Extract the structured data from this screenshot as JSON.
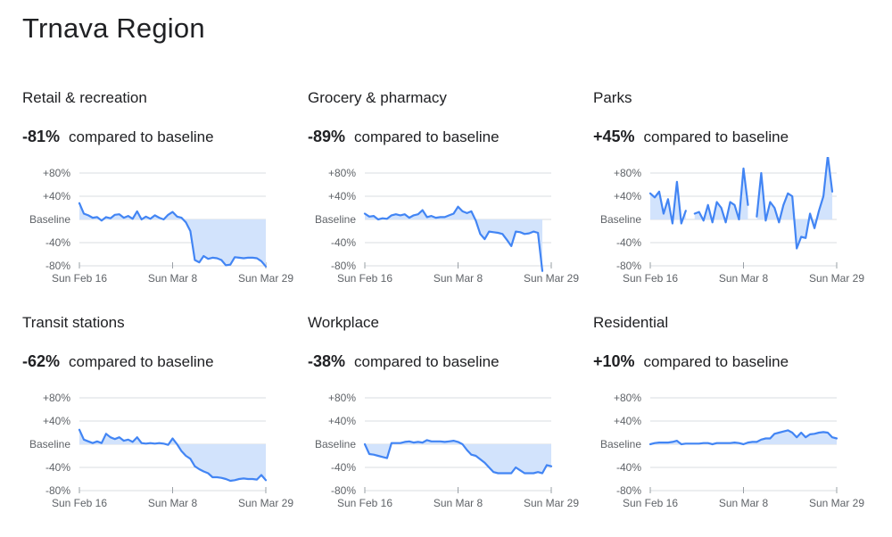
{
  "region_title": "Trnava Region",
  "comparison_label": "compared to baseline",
  "colors": {
    "line": "#4285f4",
    "fill": "#d2e3fc",
    "grid": "#dadce0",
    "text": "#5f6368"
  },
  "axis": {
    "y_ticks": [
      {
        "value": 80,
        "label": "+80%"
      },
      {
        "value": 40,
        "label": "+40%"
      },
      {
        "value": 0,
        "label": "Baseline"
      },
      {
        "value": -40,
        "label": "-40%"
      },
      {
        "value": -80,
        "label": "-80%"
      }
    ],
    "x_ticks": [
      {
        "index": 0,
        "label": "Sun Feb 16"
      },
      {
        "index": 21,
        "label": "Sun Mar 8"
      },
      {
        "index": 42,
        "label": "Sun Mar 29"
      }
    ]
  },
  "chart_data": [
    {
      "type": "line",
      "title": "Retail & recreation",
      "change": "-81%",
      "ylim": [
        -80,
        80
      ],
      "series": [
        {
          "values": [
            28,
            10,
            7,
            3,
            4,
            -2,
            4,
            2,
            8,
            9,
            3,
            6,
            1,
            14,
            0,
            5,
            1,
            7,
            3,
            0,
            8,
            13,
            5,
            3,
            -5,
            -20,
            -70,
            -74,
            -63,
            -68,
            -66,
            -67,
            -70,
            -79,
            -78,
            -65,
            -66,
            -67,
            -66,
            -66,
            -67,
            -72,
            -81
          ]
        }
      ]
    },
    {
      "type": "line",
      "title": "Grocery & pharmacy",
      "change": "-89%",
      "ylim": [
        -80,
        80
      ],
      "series": [
        {
          "values": [
            10,
            5,
            6,
            0,
            2,
            1,
            7,
            9,
            7,
            9,
            3,
            7,
            9,
            16,
            4,
            6,
            3,
            4,
            4,
            7,
            10,
            22,
            14,
            11,
            14,
            -2,
            -25,
            -34,
            -21,
            -22,
            -23,
            -25,
            -35,
            -46,
            -21,
            -22,
            -25,
            -24,
            -21,
            -23,
            -89,
            null,
            null
          ]
        }
      ]
    },
    {
      "type": "line",
      "title": "Parks",
      "change": "+45%",
      "ylim": [
        -80,
        80
      ],
      "series": [
        {
          "values": [
            45,
            38,
            48,
            10,
            35,
            -7,
            65,
            -7,
            15,
            null,
            10,
            13,
            -2,
            25,
            -5,
            30,
            20,
            -5,
            30,
            25,
            0,
            88,
            25,
            null,
            5,
            80,
            -2,
            30,
            20,
            -5,
            25,
            45,
            40,
            -50,
            -30,
            -32,
            10,
            -15,
            15,
            40,
            110,
            48,
            null
          ]
        }
      ]
    },
    {
      "type": "line",
      "title": "Transit stations",
      "change": "-62%",
      "ylim": [
        -80,
        80
      ],
      "series": [
        {
          "values": [
            25,
            8,
            5,
            2,
            5,
            2,
            18,
            12,
            9,
            12,
            6,
            8,
            4,
            12,
            2,
            1,
            2,
            1,
            2,
            1,
            -1,
            10,
            0,
            -12,
            -20,
            -25,
            -38,
            -43,
            -47,
            -50,
            -57,
            -57,
            -58,
            -60,
            -63,
            -62,
            -60,
            -59,
            -60,
            -60,
            -61,
            -53,
            -62
          ]
        }
      ]
    },
    {
      "type": "line",
      "title": "Workplace",
      "change": "-38%",
      "ylim": [
        -80,
        80
      ],
      "series": [
        {
          "values": [
            0,
            -17,
            -18,
            -20,
            -22,
            -24,
            2,
            2,
            2,
            4,
            5,
            3,
            4,
            3,
            7,
            5,
            5,
            5,
            4,
            5,
            6,
            4,
            0,
            -10,
            -18,
            -20,
            -26,
            -32,
            -40,
            -48,
            -50,
            -50,
            -50,
            -50,
            -40,
            -45,
            -50,
            -50,
            -50,
            -48,
            -50,
            -36,
            -38
          ]
        }
      ]
    },
    {
      "type": "line",
      "title": "Residential",
      "change": "+10%",
      "ylim": [
        -80,
        80
      ],
      "series": [
        {
          "values": [
            0,
            2,
            3,
            3,
            3,
            4,
            6,
            0,
            1,
            1,
            1,
            1,
            2,
            2,
            0,
            2,
            2,
            2,
            2,
            3,
            2,
            0,
            3,
            4,
            4,
            8,
            10,
            10,
            18,
            20,
            22,
            24,
            20,
            12,
            20,
            12,
            17,
            18,
            20,
            21,
            20,
            12,
            10
          ]
        }
      ]
    }
  ]
}
